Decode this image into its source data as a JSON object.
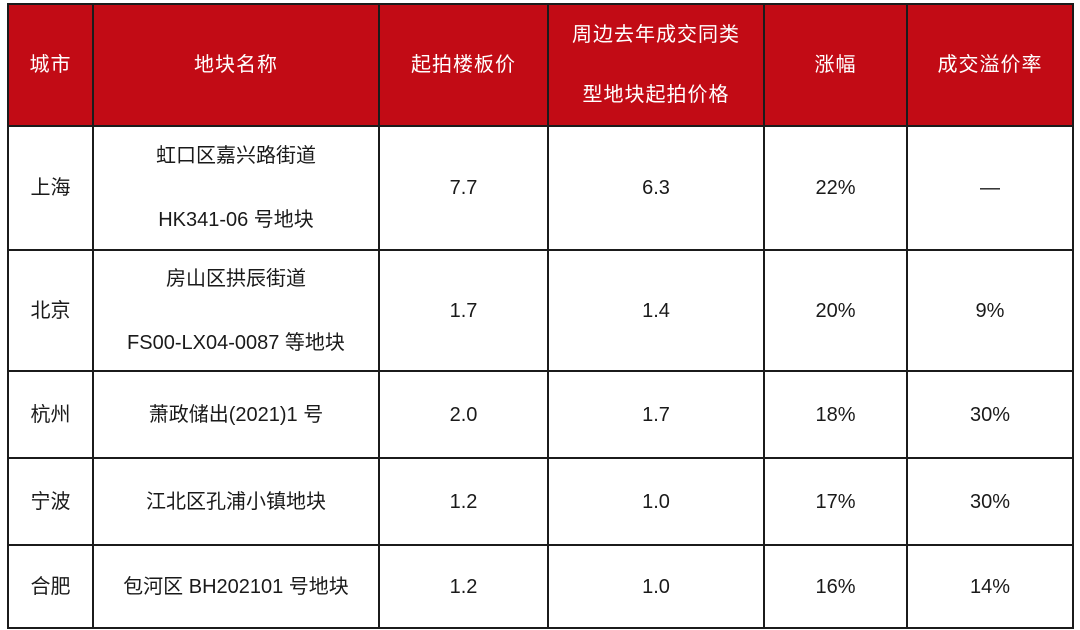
{
  "table": {
    "colors": {
      "header_bg": "#C20B15",
      "header_text": "#FFFFFF",
      "grid_line": "#1B1B1B",
      "body_text": "#1A1A1A"
    },
    "columns": [
      {
        "key": "city",
        "label_lines": [
          "城市"
        ]
      },
      {
        "key": "parcel_name",
        "label_lines": [
          "地块名称"
        ]
      },
      {
        "key": "starting_floor_price",
        "label_lines": [
          "起拍楼板价"
        ]
      },
      {
        "key": "nearby_last_year_starting_price",
        "label_lines": [
          "周边去年成交同类",
          "型地块起拍价格"
        ]
      },
      {
        "key": "increase",
        "label_lines": [
          "涨幅"
        ]
      },
      {
        "key": "premium_rate",
        "label_lines": [
          "成交溢价率"
        ]
      }
    ],
    "rows": [
      {
        "city": "上海",
        "parcel_name": [
          "虹口区嘉兴路街道",
          "HK341-06 号地块"
        ],
        "starting_floor_price": "7.7",
        "nearby_last_year_starting_price": "6.3",
        "increase": "22%",
        "premium_rate": "—"
      },
      {
        "city": "北京",
        "parcel_name": [
          "房山区拱辰街道",
          "FS00-LX04-0087 等地块"
        ],
        "starting_floor_price": "1.7",
        "nearby_last_year_starting_price": "1.4",
        "increase": "20%",
        "premium_rate": "9%"
      },
      {
        "city": "杭州",
        "parcel_name": [
          "萧政储出(2021)1 号"
        ],
        "starting_floor_price": "2.0",
        "nearby_last_year_starting_price": "1.7",
        "increase": "18%",
        "premium_rate": "30%"
      },
      {
        "city": "宁波",
        "parcel_name": [
          "江北区孔浦小镇地块"
        ],
        "starting_floor_price": "1.2",
        "nearby_last_year_starting_price": "1.0",
        "increase": "17%",
        "premium_rate": "30%"
      },
      {
        "city": "合肥",
        "parcel_name": [
          "包河区 BH202101 号地块"
        ],
        "starting_floor_price": "1.2",
        "nearby_last_year_starting_price": "1.0",
        "increase": "16%",
        "premium_rate": "14%"
      }
    ]
  },
  "chart_data": {
    "type": "table",
    "title": "",
    "columns": [
      "城市",
      "地块名称",
      "起拍楼板价",
      "周边去年成交同类型地块起拍价格",
      "涨幅",
      "成交溢价率"
    ],
    "rows": [
      [
        "上海",
        "虹口区嘉兴路街道 HK341-06 号地块",
        7.7,
        6.3,
        "22%",
        "—"
      ],
      [
        "北京",
        "房山区拱辰街道 FS00-LX04-0087 等地块",
        1.7,
        1.4,
        "20%",
        "9%"
      ],
      [
        "杭州",
        "萧政储出(2021)1 号",
        2.0,
        1.7,
        "18%",
        "30%"
      ],
      [
        "宁波",
        "江北区孔浦小镇地块",
        1.2,
        1.0,
        "17%",
        "30%"
      ],
      [
        "合肥",
        "包河区 BH202101 号地块",
        1.2,
        1.0,
        "16%",
        "14%"
      ]
    ]
  }
}
